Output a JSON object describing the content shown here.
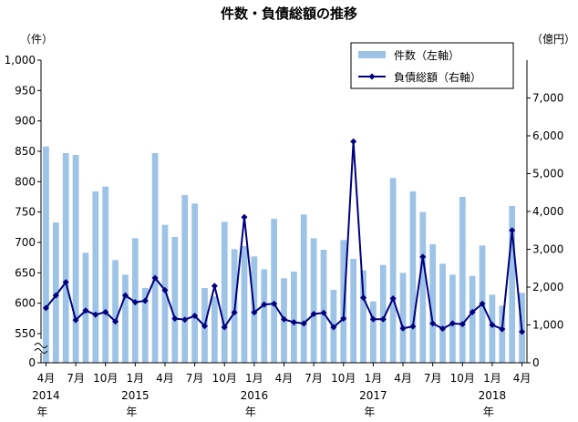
{
  "chart_data": {
    "type": "bar+line",
    "title": "件数・負債総額の推移",
    "y_left_unit": "（件）",
    "y_right_unit": "（億円）",
    "y_left": {
      "range": [
        550,
        1000
      ],
      "ticks": [
        "0",
        "550",
        "600",
        "650",
        "700",
        "750",
        "800",
        "850",
        "900",
        "950",
        "1,000"
      ],
      "axis_break": true
    },
    "y_right": {
      "range": [
        0,
        8000
      ],
      "ticks": [
        "0",
        "1,000",
        "2,000",
        "3,000",
        "4,000",
        "5,000",
        "6,000",
        "7,000"
      ]
    },
    "grid": false,
    "legend_position": "top-right",
    "x_tick_labels": [
      {
        "month": "4月",
        "year": "2014",
        "nen": "年",
        "index": 0
      },
      {
        "month": "7月",
        "index": 3
      },
      {
        "month": "10月",
        "index": 6
      },
      {
        "month": "1月",
        "year": "2015",
        "nen": "年",
        "index": 9
      },
      {
        "month": "4月",
        "index": 12
      },
      {
        "month": "7月",
        "index": 15
      },
      {
        "month": "10月",
        "index": 18
      },
      {
        "month": "1月",
        "year": "2016",
        "nen": "年",
        "index": 21
      },
      {
        "month": "4月",
        "index": 24
      },
      {
        "month": "7月",
        "index": 27
      },
      {
        "month": "10月",
        "index": 30
      },
      {
        "month": "1月",
        "year": "2017",
        "nen": "年",
        "index": 33
      },
      {
        "month": "4月",
        "index": 36
      },
      {
        "month": "7月",
        "index": 39
      },
      {
        "month": "10月",
        "index": 42
      },
      {
        "month": "1月",
        "year": "2018",
        "nen": "年",
        "index": 45
      },
      {
        "month": "4月",
        "index": 48
      }
    ],
    "series": [
      {
        "name": "件数（左軸）",
        "type": "bar",
        "axis": "left",
        "color": "#9dc3e6",
        "values": [
          858,
          733,
          847,
          844,
          683,
          784,
          792,
          671,
          647,
          707,
          625,
          847,
          729,
          709,
          778,
          764,
          625,
          611,
          734,
          689,
          694,
          677,
          656,
          739,
          641,
          652,
          746,
          707,
          688,
          622,
          704,
          673,
          654,
          603,
          663,
          806,
          650,
          784,
          750,
          697,
          665,
          647,
          775,
          645,
          695,
          614,
          596,
          760,
          617
        ]
      },
      {
        "name": "負債総額（右軸）",
        "type": "line",
        "axis": "right",
        "color": "#000080",
        "values": [
          1450,
          1780,
          2130,
          1130,
          1380,
          1270,
          1340,
          1090,
          1780,
          1600,
          1640,
          2240,
          1920,
          1170,
          1140,
          1240,
          970,
          2030,
          940,
          1330,
          3850,
          1330,
          1540,
          1560,
          1150,
          1070,
          1040,
          1290,
          1320,
          940,
          1170,
          5850,
          1720,
          1150,
          1150,
          1700,
          910,
          960,
          2800,
          1040,
          900,
          1040,
          1020,
          1340,
          1560,
          1000,
          890,
          3500,
          820
        ]
      }
    ]
  }
}
